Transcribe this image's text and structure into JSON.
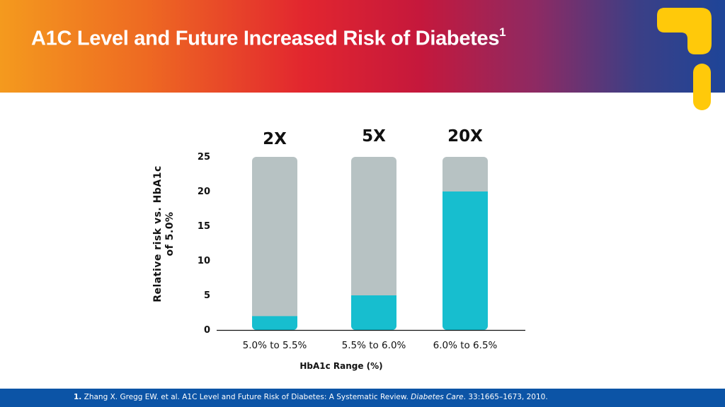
{
  "header": {
    "title": "A1C Level and Future Increased Risk of Diabetes",
    "title_sup": "1"
  },
  "colors": {
    "bar_background": "#b7c2c3",
    "bar_fill": "#17becf",
    "footer": "#0c54a6",
    "logo": "#ffc90a"
  },
  "icons": {
    "logo": "brand-logo-icon"
  },
  "chart_data": {
    "type": "bar",
    "title": "",
    "categories": [
      "5.0% to 5.5%",
      "5.5% to 6.0%",
      "6.0% to 6.5%"
    ],
    "values": [
      2,
      5,
      20
    ],
    "background_values": [
      25,
      25,
      25
    ],
    "top_labels": [
      "2X",
      "5X",
      "20X"
    ],
    "xlabel": "HbA1c Range (%)",
    "ylabel_lines": [
      "Relative risk vs. HbA1c",
      "of 5.0%"
    ],
    "ylim": [
      0,
      25
    ],
    "yticks": [
      0,
      5,
      10,
      15,
      20,
      25
    ],
    "grid": false,
    "legend": "none"
  },
  "footer": {
    "num": "1.",
    "text_pre": " Zhang X. Gregg EW. et al. A1C Level and Future Risk of Diabetes: A Systematic Review. ",
    "journal": "Diabetes Care",
    "text_post": ". 33:1665–1673, 2010."
  }
}
